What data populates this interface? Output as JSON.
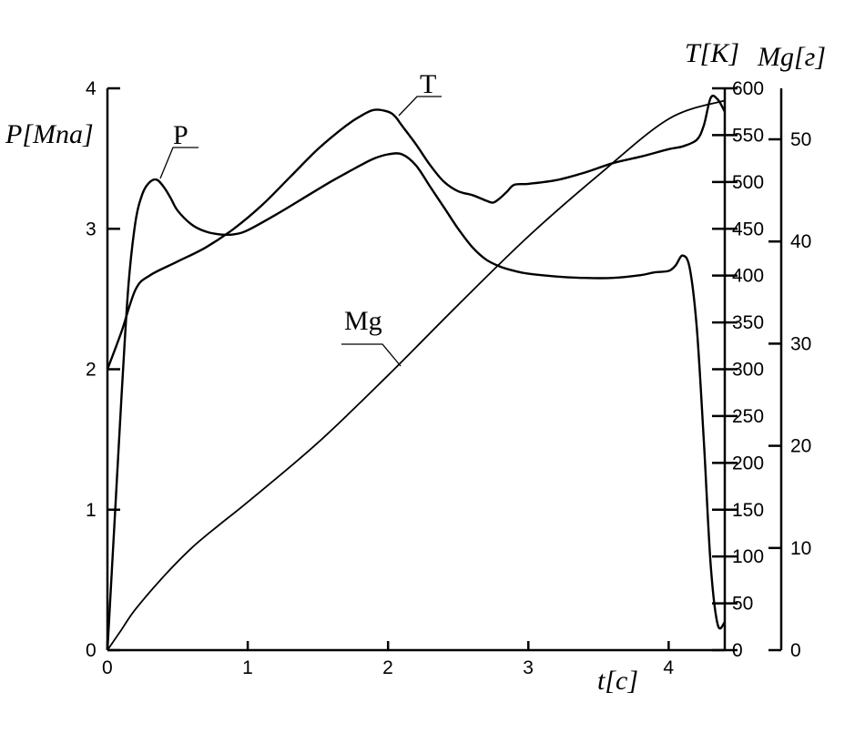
{
  "chart_data": {
    "type": "line",
    "x_axis": {
      "label": "t[c]",
      "range": [
        0,
        4.4
      ],
      "ticks": [
        0,
        1,
        2,
        3,
        4
      ]
    },
    "y_axes": [
      {
        "id": "P",
        "label": "P[Mna]",
        "side": "left",
        "range": [
          0,
          4
        ],
        "ticks": [
          0,
          1,
          2,
          3,
          4
        ]
      },
      {
        "id": "T",
        "label": "T[K]",
        "side": "right",
        "range": [
          0,
          600
        ],
        "ticks": [
          0,
          50,
          100,
          150,
          200,
          250,
          300,
          350,
          400,
          450,
          500,
          550,
          600
        ]
      },
      {
        "id": "Mg",
        "label": "Mg[г]",
        "side": "right-outer",
        "range": [
          0,
          55
        ],
        "ticks": [
          0,
          10,
          20,
          30,
          40,
          50
        ]
      }
    ],
    "grid": false,
    "series": [
      {
        "name": "P",
        "axis": "P",
        "x": [
          0,
          0.05,
          0.1,
          0.15,
          0.2,
          0.25,
          0.3,
          0.35,
          0.4,
          0.45,
          0.5,
          0.6,
          0.7,
          0.8,
          0.9,
          1.0,
          1.2,
          1.4,
          1.6,
          1.8,
          1.9,
          2.0,
          2.1,
          2.2,
          2.3,
          2.4,
          2.5,
          2.6,
          2.7,
          2.8,
          2.9,
          3.0,
          3.2,
          3.4,
          3.6,
          3.8,
          3.9,
          4.0,
          4.05,
          4.1,
          4.15,
          4.2,
          4.25,
          4.3,
          4.35,
          4.4
        ],
        "y": [
          0,
          0.9,
          1.8,
          2.6,
          3.05,
          3.25,
          3.33,
          3.35,
          3.3,
          3.22,
          3.13,
          3.03,
          2.98,
          2.96,
          2.96,
          2.99,
          3.1,
          3.22,
          3.34,
          3.45,
          3.5,
          3.53,
          3.53,
          3.45,
          3.3,
          3.15,
          3.0,
          2.87,
          2.78,
          2.73,
          2.7,
          2.68,
          2.66,
          2.65,
          2.65,
          2.67,
          2.69,
          2.7,
          2.74,
          2.81,
          2.72,
          2.3,
          1.5,
          0.6,
          0.18,
          0.2
        ]
      },
      {
        "name": "T",
        "axis": "T",
        "x": [
          0,
          0.1,
          0.2,
          0.3,
          0.5,
          0.7,
          0.9,
          1.1,
          1.3,
          1.5,
          1.7,
          1.8,
          1.9,
          2.0,
          2.05,
          2.1,
          2.2,
          2.3,
          2.4,
          2.5,
          2.6,
          2.7,
          2.75,
          2.8,
          2.85,
          2.9,
          3.0,
          3.2,
          3.4,
          3.6,
          3.8,
          4.0,
          4.1,
          4.2,
          4.25,
          4.3,
          4.35,
          4.4
        ],
        "y": [
          300,
          340,
          385,
          400,
          415,
          430,
          450,
          475,
          505,
          535,
          560,
          570,
          577,
          575,
          570,
          560,
          540,
          518,
          500,
          490,
          486,
          480,
          478,
          483,
          490,
          497,
          498,
          502,
          510,
          520,
          527,
          535,
          538,
          545,
          560,
          590,
          588,
          575
        ]
      },
      {
        "name": "Mg",
        "axis": "Mg",
        "x": [
          0,
          0.1,
          0.2,
          0.4,
          0.6,
          0.8,
          1.0,
          1.5,
          2.0,
          2.5,
          3.0,
          3.5,
          4.0,
          4.4
        ],
        "y": [
          0,
          2.0,
          4.0,
          7.2,
          10.0,
          12.3,
          14.5,
          20.3,
          26.9,
          33.8,
          40.5,
          46.5,
          52.0,
          53.8
        ]
      }
    ],
    "annotations": [
      "P",
      "T",
      "Mg"
    ]
  }
}
